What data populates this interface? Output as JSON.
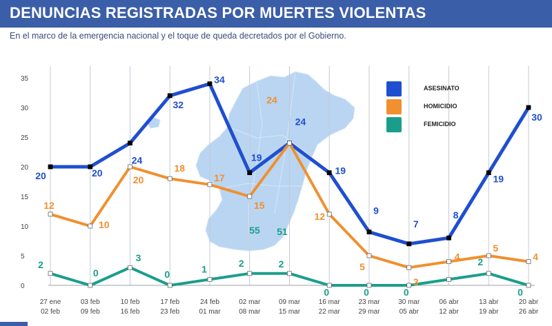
{
  "header": {
    "title": "DENUNCIAS REGISTRADAS POR MUERTES VIOLENTAS",
    "subtitle": "En el marco de la emergencia nacional y el toque de queda decretados por el Gobierno."
  },
  "colors": {
    "header_bg": "#3b5ea8",
    "asesinato": "#1f4fd0",
    "homicidio": "#f0902e",
    "femicidio": "#1a9e8c",
    "map": "#b9d5f2"
  },
  "map_labels": [
    "24",
    "55",
    "51"
  ],
  "chart_data": {
    "type": "line",
    "title": "DENUNCIAS REGISTRADAS POR MUERTES VIOLENTAS",
    "categories": [
      [
        "27 ene",
        "02 feb"
      ],
      [
        "03 feb",
        "09 feb"
      ],
      [
        "10 feb",
        "16 feb"
      ],
      [
        "17 feb",
        "23 feb"
      ],
      [
        "24 feb",
        "01 mar"
      ],
      [
        "02 mar",
        "08 mar"
      ],
      [
        "09 mar",
        "15 mar"
      ],
      [
        "16 mar",
        "22 mar"
      ],
      [
        "23 mar",
        "29 mar"
      ],
      [
        "30 mar",
        "05 abr"
      ],
      [
        "06 abr",
        "12 abr"
      ],
      [
        "13 abr",
        "19 abr"
      ],
      [
        "20 abr",
        "26 abr"
      ]
    ],
    "yticks": [
      "0",
      "5",
      "10",
      "15",
      "20",
      "25",
      "30",
      "35"
    ],
    "ylim": [
      0,
      35
    ],
    "legend_position": "top-right",
    "series": [
      {
        "name": "ASESINATO",
        "values": [
          20,
          20,
          24,
          32,
          34,
          19,
          24,
          19,
          9,
          7,
          8,
          19,
          30
        ],
        "labels": [
          "20",
          "20",
          "24",
          "32",
          "34",
          "19",
          "24",
          "19",
          "9",
          "7",
          "8",
          "19",
          "30"
        ]
      },
      {
        "name": "HOMICIDIO",
        "values": [
          12,
          10,
          20,
          18,
          17,
          15,
          24,
          12,
          5,
          3,
          4,
          5,
          4
        ],
        "labels": [
          "12",
          "10",
          "20",
          "18",
          "17",
          "15",
          "",
          "12",
          "5",
          "3",
          "4",
          "5",
          "4"
        ]
      },
      {
        "name": "FEMICIDIO",
        "values": [
          2,
          0,
          3,
          0,
          1,
          2,
          2,
          0,
          0,
          0,
          1,
          2,
          0
        ],
        "labels": [
          "2",
          "0",
          "3",
          "0",
          "1",
          "2",
          "2",
          "0",
          "0",
          "0",
          "",
          "2",
          "0"
        ]
      }
    ]
  }
}
